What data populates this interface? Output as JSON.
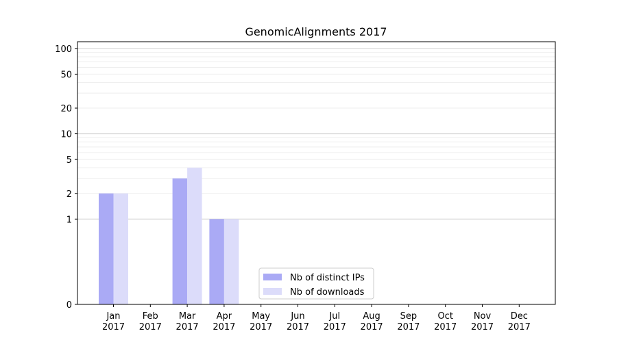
{
  "chart_data": {
    "type": "bar",
    "title": "GenomicAlignments 2017",
    "xlabel": "",
    "ylabel": "",
    "yscale": "symlog",
    "ylim": [
      0,
      120
    ],
    "yticks": [
      0,
      1,
      2,
      5,
      10,
      20,
      50,
      100
    ],
    "ytick_labels": [
      "0",
      "1",
      "2",
      "5",
      "10",
      "20",
      "50",
      "100"
    ],
    "grid": "y",
    "legend_position": "bottom-center",
    "categories": [
      [
        "Jan",
        "2017"
      ],
      [
        "Feb",
        "2017"
      ],
      [
        "Mar",
        "2017"
      ],
      [
        "Apr",
        "2017"
      ],
      [
        "May",
        "2017"
      ],
      [
        "Jun",
        "2017"
      ],
      [
        "Jul",
        "2017"
      ],
      [
        "Aug",
        "2017"
      ],
      [
        "Sep",
        "2017"
      ],
      [
        "Oct",
        "2017"
      ],
      [
        "Nov",
        "2017"
      ],
      [
        "Dec",
        "2017"
      ]
    ],
    "series": [
      {
        "name": "Nb of distinct IPs",
        "color": "#aaaaf5",
        "values": [
          2,
          0,
          3,
          1,
          0,
          0,
          0,
          0,
          0,
          0,
          0,
          0
        ]
      },
      {
        "name": "Nb of downloads",
        "color": "#dcdcfa",
        "values": [
          2,
          0,
          4,
          1,
          0,
          0,
          0,
          0,
          0,
          0,
          0,
          0
        ]
      }
    ]
  }
}
